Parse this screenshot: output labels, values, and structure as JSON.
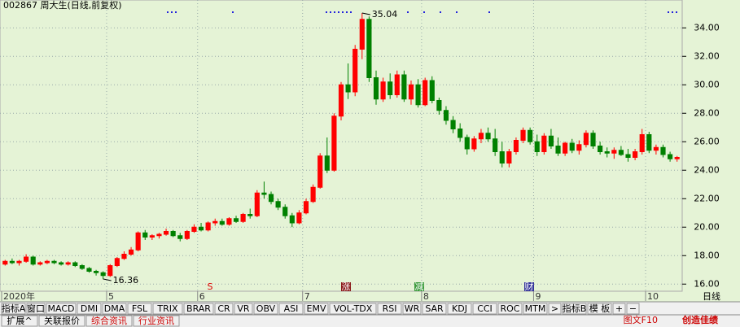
{
  "chart_data": {
    "type": "candlestick",
    "title": "002867 周大生(日线,前复权)",
    "categories": [
      "2020年",
      null,
      null,
      null,
      null,
      null,
      null,
      null,
      null,
      null,
      null,
      null,
      null,
      null,
      null,
      "5",
      null,
      null,
      null,
      null,
      null,
      null,
      null,
      null,
      null,
      null,
      null,
      null,
      "6",
      null,
      null,
      null,
      null,
      null,
      null,
      null,
      null,
      null,
      null,
      null,
      null,
      null,
      null,
      "7",
      null,
      null,
      null,
      null,
      null,
      null,
      null,
      null,
      null,
      null,
      null,
      null,
      null,
      null,
      null,
      null,
      "8",
      null,
      null,
      null,
      null,
      null,
      null,
      null,
      null,
      null,
      null,
      null,
      null,
      null,
      null,
      null,
      "9",
      null,
      null,
      null,
      null,
      null,
      null,
      null,
      null,
      null,
      null,
      null,
      null,
      null,
      null,
      null,
      "10",
      null,
      null,
      null,
      null
    ],
    "open": [
      17.4,
      17.6,
      17.5,
      17.6,
      17.9,
      17.4,
      17.5,
      17.6,
      17.5,
      17.4,
      17.5,
      17.3,
      17.1,
      16.9,
      16.8,
      16.6,
      17.3,
      17.8,
      18.1,
      18.4,
      19.6,
      19.3,
      19.4,
      19.5,
      19.7,
      19.4,
      19.2,
      19.7,
      20.0,
      19.8,
      20.3,
      20.4,
      20.2,
      20.6,
      20.4,
      20.9,
      20.8,
      22.4,
      22.3,
      21.8,
      21.4,
      20.8,
      20.3,
      21.0,
      21.8,
      22.8,
      25.0,
      24.0,
      27.8,
      30.0,
      29.5,
      32.5,
      34.6,
      30.5,
      29.0,
      30.2,
      29.3,
      30.7,
      29.0,
      30.0,
      28.6,
      30.3,
      28.9,
      28.2,
      27.5,
      26.9,
      26.3,
      25.5,
      26.2,
      26.6,
      26.2,
      25.3,
      24.5,
      25.3,
      26.1,
      26.8,
      26.0,
      25.3,
      26.4,
      25.7,
      25.2,
      25.9,
      25.4,
      25.8,
      26.6,
      25.7,
      25.3,
      25.2,
      25.4,
      25.1,
      24.9,
      25.3,
      26.5,
      25.4,
      25.6,
      25.1,
      24.8
    ],
    "high": [
      17.7,
      17.8,
      17.7,
      18.1,
      18.0,
      17.6,
      17.7,
      17.7,
      17.6,
      17.6,
      17.6,
      17.4,
      17.2,
      17.0,
      16.9,
      17.4,
      17.9,
      18.3,
      18.6,
      19.7,
      19.8,
      19.5,
      19.6,
      19.9,
      19.8,
      19.6,
      19.8,
      20.2,
      20.3,
      20.4,
      20.6,
      20.6,
      20.7,
      20.8,
      21.0,
      21.3,
      22.6,
      23.2,
      22.5,
      22.0,
      21.6,
      21.0,
      21.2,
      22.0,
      23.0,
      25.2,
      26.3,
      28.0,
      30.2,
      31.5,
      32.8,
      35.04,
      34.8,
      31.0,
      30.5,
      30.8,
      31.0,
      31.0,
      30.3,
      30.4,
      30.5,
      30.6,
      29.1,
      28.5,
      27.8,
      27.3,
      26.5,
      26.4,
      26.9,
      27.0,
      26.9,
      26.0,
      25.5,
      26.3,
      27.0,
      27.0,
      26.5,
      26.6,
      26.9,
      26.3,
      26.0,
      26.2,
      26.1,
      26.8,
      26.8,
      26.0,
      25.6,
      25.6,
      25.7,
      25.5,
      25.5,
      26.9,
      26.7,
      25.8,
      25.8,
      25.3,
      25.0
    ],
    "low": [
      17.3,
      17.4,
      17.3,
      17.5,
      17.3,
      17.3,
      17.4,
      17.4,
      17.3,
      17.3,
      17.2,
      17.0,
      16.8,
      16.6,
      16.36,
      16.5,
      17.2,
      17.7,
      18.0,
      18.3,
      19.1,
      19.1,
      19.2,
      19.4,
      19.3,
      19.0,
      19.1,
      19.6,
      19.7,
      19.7,
      20.1,
      20.1,
      20.1,
      20.3,
      20.3,
      20.6,
      20.7,
      22.0,
      21.6,
      21.2,
      20.6,
      20.0,
      20.2,
      20.9,
      21.7,
      22.7,
      23.8,
      23.9,
      27.5,
      29.0,
      29.2,
      31.8,
      30.2,
      28.6,
      28.8,
      29.0,
      29.1,
      28.8,
      28.6,
      28.4,
      28.5,
      28.7,
      27.9,
      27.2,
      26.6,
      26.0,
      25.1,
      25.3,
      25.9,
      26.0,
      25.0,
      24.2,
      24.2,
      25.1,
      25.9,
      25.8,
      25.0,
      25.1,
      25.5,
      25.0,
      25.0,
      25.2,
      25.1,
      25.6,
      25.5,
      25.1,
      24.9,
      24.8,
      25.0,
      24.6,
      24.7,
      25.1,
      25.2,
      25.1,
      24.9,
      24.6,
      24.6
    ],
    "close": [
      17.6,
      17.5,
      17.6,
      17.9,
      17.4,
      17.5,
      17.6,
      17.5,
      17.4,
      17.5,
      17.3,
      17.1,
      16.9,
      16.8,
      16.6,
      17.3,
      17.8,
      18.1,
      18.4,
      19.6,
      19.3,
      19.4,
      19.5,
      19.7,
      19.4,
      19.2,
      19.7,
      20.0,
      19.8,
      20.3,
      20.4,
      20.2,
      20.6,
      20.4,
      20.9,
      20.8,
      22.4,
      22.3,
      21.8,
      21.4,
      20.8,
      20.3,
      21.0,
      21.8,
      22.8,
      25.0,
      24.0,
      27.8,
      30.0,
      29.5,
      32.5,
      34.6,
      30.5,
      29.0,
      30.2,
      29.3,
      30.7,
      29.0,
      30.0,
      28.6,
      30.3,
      28.9,
      28.2,
      27.5,
      26.9,
      26.3,
      25.5,
      26.2,
      26.6,
      26.2,
      25.3,
      24.5,
      25.3,
      26.1,
      26.8,
      26.0,
      25.3,
      26.4,
      25.7,
      25.2,
      25.9,
      25.4,
      25.8,
      26.6,
      25.7,
      25.3,
      25.2,
      25.4,
      25.1,
      24.9,
      25.3,
      26.5,
      25.4,
      25.6,
      25.1,
      24.8,
      24.9
    ],
    "up_color": "#ff0000",
    "down_color": "#008000",
    "ylim": [
      15.5,
      35.5
    ],
    "yticks": [
      {
        "value": 16,
        "label": "16.00"
      },
      {
        "value": 18,
        "label": "18.00"
      },
      {
        "value": 20,
        "label": "20.00"
      },
      {
        "value": 22,
        "label": "22.00"
      },
      {
        "value": 24,
        "label": "24.00"
      },
      {
        "value": 26,
        "label": "26.00"
      },
      {
        "value": 28,
        "label": "28.00"
      },
      {
        "value": 30,
        "label": "30.00"
      },
      {
        "value": 32,
        "label": "32.00"
      },
      {
        "value": 34,
        "label": "34.00"
      }
    ],
    "grid": true,
    "high_label": 35.04,
    "low_label": 16.36,
    "period_label": "日线",
    "event_markers": [
      "S",
      "涨",
      "减",
      "财"
    ]
  },
  "toolbar": [
    "指标A",
    "窗口",
    "MACD",
    "DMI",
    "DMA",
    "FSL",
    "TRIX",
    "BRAR",
    "CR",
    "VR",
    "OBV",
    "ASI",
    "EMV",
    "VOL-TDX",
    "RSI",
    "WR",
    "SAR",
    "KDJ",
    "CCI",
    "ROC",
    "MTM",
    ">",
    "指标B",
    "模 板",
    "+",
    "−"
  ],
  "tabs": [
    "扩展^",
    "关联报价",
    "综合资讯",
    "行业资讯"
  ],
  "right_tab": "图文F10",
  "right_text": "创造佳绩"
}
